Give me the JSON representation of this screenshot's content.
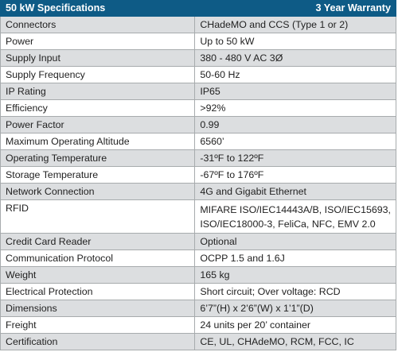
{
  "header": {
    "title": "50 kW Specifications",
    "warranty": "3 Year Warranty"
  },
  "rows": [
    {
      "label": "Connectors",
      "value": "CHadeMO and CCS (Type 1 or 2)"
    },
    {
      "label": "Power",
      "value": "Up to 50 kW"
    },
    {
      "label": "Supply Input",
      "value": "380 - 480 V AC 3Ø"
    },
    {
      "label": "Supply Frequency",
      "value": "50-60 Hz"
    },
    {
      "label": "IP Rating",
      "value": "IP65"
    },
    {
      "label": "Efficiency",
      "value": ">92%"
    },
    {
      "label": "Power Factor",
      "value": "0.99"
    },
    {
      "label": "Maximum Operating Altitude",
      "value": "6560’"
    },
    {
      "label": "Operating Temperature",
      "value": "-31ºF to 122ºF"
    },
    {
      "label": "Storage Temperature",
      "value": "-67ºF to 176ºF"
    },
    {
      "label": "Network Connection",
      "value": "4G and Gigabit Ethernet"
    },
    {
      "label": "RFID",
      "value_line1": "MIFARE ISO/IEC14443A/B, ISO/IEC15693,",
      "value_line2": "ISO/IEC18000-3, FeliCa, NFC, EMV 2.0"
    },
    {
      "label": "Credit Card Reader",
      "value": "Optional"
    },
    {
      "label": "Communication Protocol",
      "value": "OCPP 1.5 and 1.6J"
    },
    {
      "label": "Weight",
      "value": "165 kg"
    },
    {
      "label": "Electrical Protection",
      "value": "Short circuit; Over voltage: RCD"
    },
    {
      "label": "Dimensions",
      "value": "6’7”(H) x 2’6”(W) x 1’1”(D)"
    },
    {
      "label": "Freight",
      "value": "24 units per 20’ container"
    },
    {
      "label": "Certification",
      "value": "CE, UL, CHAdeMO, RCM, FCC, IC"
    }
  ]
}
